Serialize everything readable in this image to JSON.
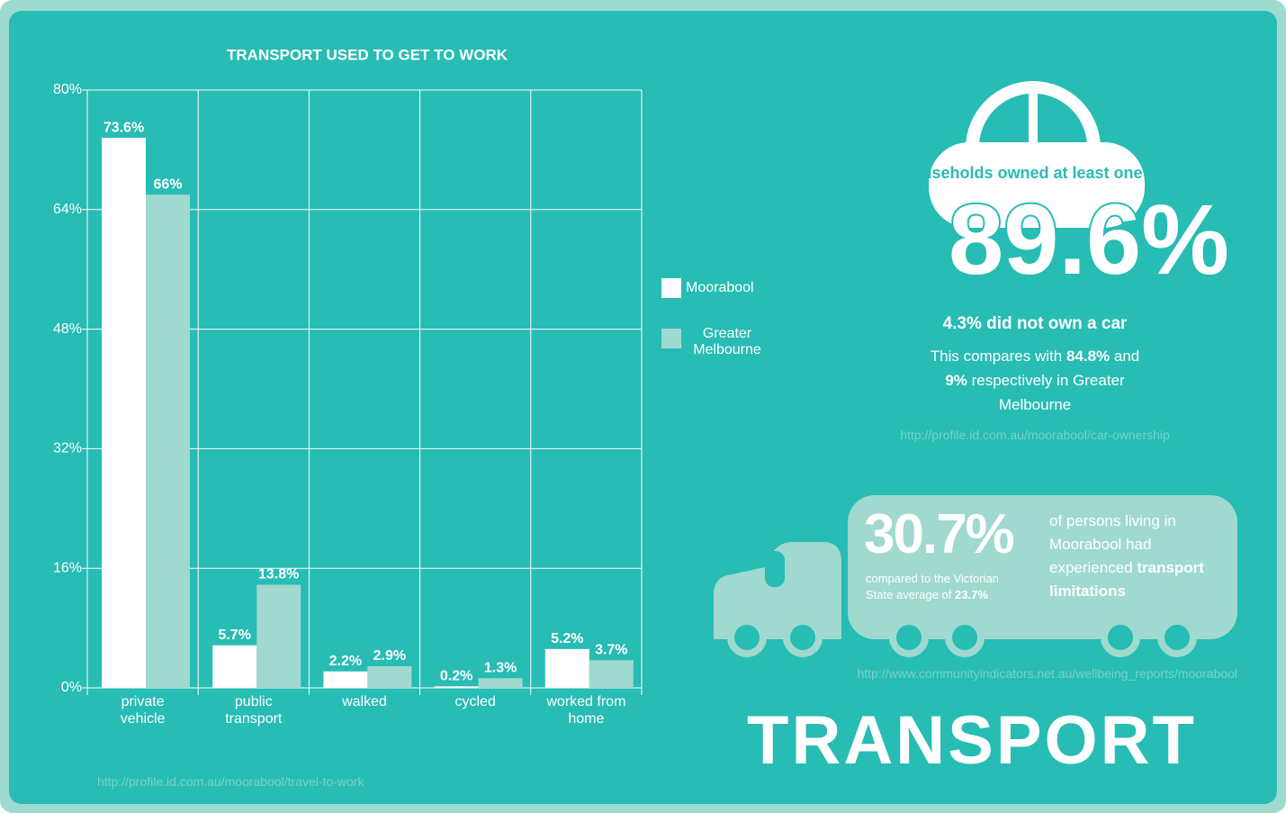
{
  "chart_data": {
    "type": "bar",
    "title": "TRANSPORT USED TO GET TO WORK",
    "categories": [
      "private vehicle",
      "public transport",
      "walked",
      "cycled",
      "worked from home"
    ],
    "series": [
      {
        "name": "Moorabool",
        "color": "#ffffff",
        "values": [
          73.6,
          5.7,
          2.2,
          0.2,
          5.2
        ],
        "value_labels": [
          "73.6%",
          "5.7%",
          "2.2%",
          "0.2%",
          "5.2%"
        ]
      },
      {
        "name": "Greater Melbourne",
        "color": "#a0d9cf",
        "values": [
          66,
          13.8,
          2.9,
          1.3,
          3.7
        ],
        "value_labels": [
          "66%",
          "13.8%",
          "2.9%",
          "1.3%",
          "3.7%"
        ]
      }
    ],
    "ylim": [
      0,
      80
    ],
    "yticks": [
      {
        "value": 0,
        "label": "0%"
      },
      {
        "value": 16,
        "label": "16%"
      },
      {
        "value": 32,
        "label": "32%"
      },
      {
        "value": 48,
        "label": "48%"
      },
      {
        "value": 64,
        "label": "64%"
      },
      {
        "value": 80,
        "label": "80%"
      }
    ],
    "grid": true,
    "source": "http://profile.id.com.au/moorabool/travel-to-work"
  },
  "car": {
    "label": "households owned at least one car",
    "big_value": "89.6%",
    "not_own_value": "4.3%",
    "not_own_text": "did not own a car",
    "compare": [
      "This compares with ",
      "84.8%",
      " and ",
      "9%",
      " respectively in Greater Melbourne"
    ],
    "source": "http://profile.id.com.au/moorabool/car-ownership"
  },
  "truck": {
    "value": "30.7%",
    "compare_text": "compared to the Victorian State average of ",
    "compare_value": "23.7%",
    "text": "of persons living in Moorabool had experienced ",
    "text_bold": "transport limitations",
    "source": "http://www.communityindicators.net.au/wellbeing_reports/moorabool"
  },
  "title": "TRANSPORT"
}
